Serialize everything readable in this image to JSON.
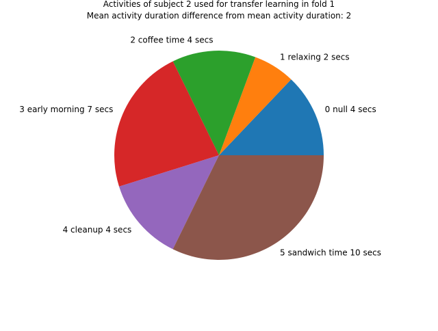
{
  "chart_data": {
    "type": "pie",
    "title_line1": "Activities of subject 2 used for transfer learning in fold 1",
    "title_line2": "Mean activity duration difference from mean activity duration: 2",
    "start_angle_deg": 0,
    "direction": "counterclockwise",
    "slices": [
      {
        "label": "0 null 4 secs",
        "value": 4,
        "color": "#1f77b4"
      },
      {
        "label": "1 relaxing 2 secs",
        "value": 2,
        "color": "#ff7f0e"
      },
      {
        "label": "2 coffee time 4 secs",
        "value": 4,
        "color": "#2ca02c"
      },
      {
        "label": "3 early morning 7 secs",
        "value": 7,
        "color": "#d62728"
      },
      {
        "label": "4 cleanup 4 secs",
        "value": 4,
        "color": "#9467bd"
      },
      {
        "label": "5 sandwich time 10 secs",
        "value": 10,
        "color": "#8c564b"
      }
    ]
  }
}
